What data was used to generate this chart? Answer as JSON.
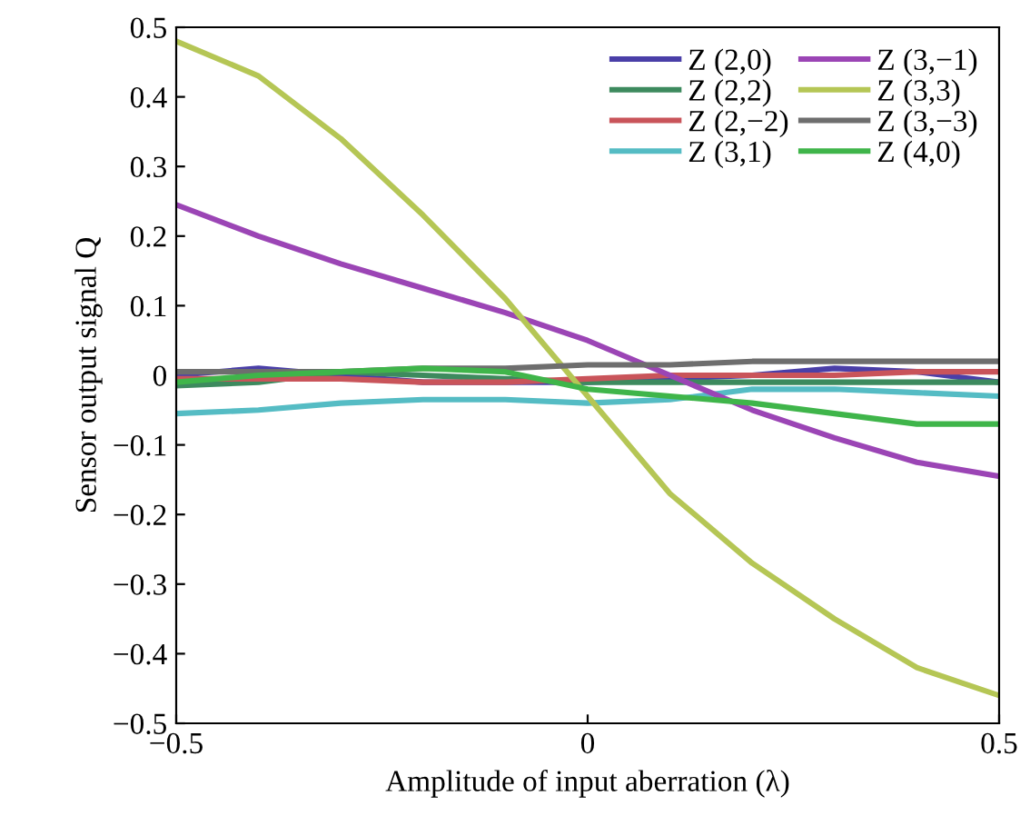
{
  "chart_data": {
    "type": "line",
    "xlabel": "Amplitude of input aberration (λ)",
    "ylabel": "Sensor output signal Q",
    "x": [
      -0.5,
      -0.4,
      -0.3,
      -0.2,
      -0.1,
      0,
      0.1,
      0.2,
      0.3,
      0.4,
      0.5
    ],
    "series": [
      {
        "name": "Z (2,0)",
        "color": "#4a3fa8",
        "values": [
          0.0,
          0.01,
          0.0,
          -0.01,
          -0.01,
          -0.01,
          -0.005,
          0.0,
          0.01,
          0.005,
          -0.01
        ]
      },
      {
        "name": "Z (2,2)",
        "color": "#3d8a5e",
        "values": [
          -0.015,
          -0.01,
          0.005,
          0.0,
          -0.005,
          -0.01,
          -0.01,
          -0.01,
          -0.01,
          -0.01,
          -0.01
        ]
      },
      {
        "name": "Z (2,−2)",
        "color": "#c9545a",
        "values": [
          -0.005,
          -0.005,
          -0.005,
          -0.01,
          -0.01,
          -0.005,
          0.0,
          0.0,
          0.0,
          0.005,
          0.005
        ]
      },
      {
        "name": "Z (3,1)",
        "color": "#55bcc4",
        "values": [
          -0.055,
          -0.05,
          -0.04,
          -0.035,
          -0.035,
          -0.04,
          -0.035,
          -0.02,
          -0.02,
          -0.025,
          -0.03
        ]
      },
      {
        "name": "Z (3,−1)",
        "color": "#9b45b5",
        "values": [
          0.245,
          0.2,
          0.16,
          0.125,
          0.09,
          0.05,
          0.0,
          -0.05,
          -0.09,
          -0.125,
          -0.145
        ]
      },
      {
        "name": "Z (3,3)",
        "color": "#b5c655",
        "values": [
          0.48,
          0.43,
          0.34,
          0.23,
          0.11,
          -0.03,
          -0.17,
          -0.27,
          -0.35,
          -0.42,
          -0.46
        ]
      },
      {
        "name": "Z (3,−3)",
        "color": "#6e6e6e",
        "values": [
          0.005,
          0.005,
          0.005,
          0.01,
          0.01,
          0.015,
          0.015,
          0.02,
          0.02,
          0.02,
          0.02
        ]
      },
      {
        "name": "Z (4,0)",
        "color": "#3fb54a",
        "values": [
          -0.01,
          0.0,
          0.005,
          0.01,
          0.005,
          -0.02,
          -0.03,
          -0.04,
          -0.055,
          -0.07,
          -0.07
        ]
      }
    ],
    "xlim": [
      -0.5,
      0.5
    ],
    "xticks": [
      -0.5,
      0,
      0.5
    ],
    "ylim": [
      -0.5,
      0.5
    ],
    "yticks": [
      -0.5,
      -0.4,
      -0.3,
      -0.2,
      -0.1,
      0,
      0.1,
      0.2,
      0.3,
      0.4,
      0.5
    ],
    "legend": "top right",
    "grid": false
  }
}
